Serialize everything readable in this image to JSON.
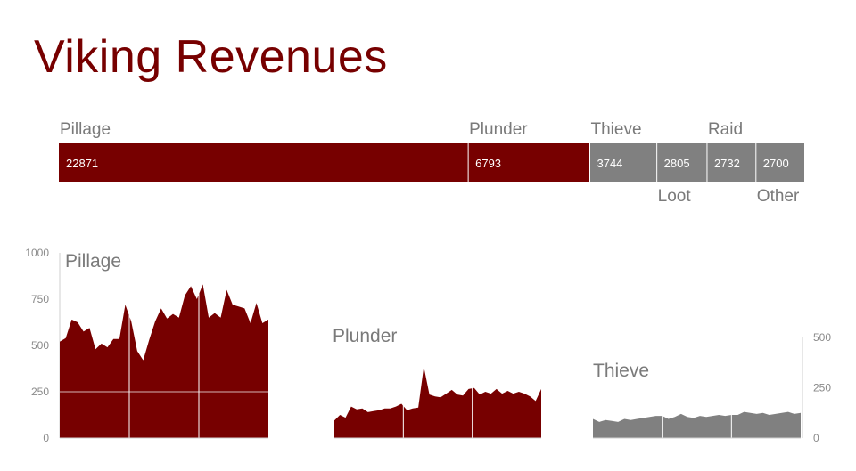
{
  "title": "Viking Revenues",
  "colors": {
    "primary": "#770000",
    "secondary": "#808080",
    "text": "#7a7a7a"
  },
  "chart_data": [
    {
      "type": "bar",
      "subtype": "stacked-horizontal",
      "categories": [
        "Pillage",
        "Plunder",
        "Thieve",
        "Loot",
        "Raid",
        "Other"
      ],
      "values": [
        22871,
        6793,
        3744,
        2805,
        2732,
        2700
      ],
      "colors": [
        "#770000",
        "#770000",
        "#808080",
        "#808080",
        "#808080",
        "#808080"
      ]
    },
    {
      "type": "area",
      "title": "Pillage",
      "ylim": [
        0,
        1000
      ],
      "yticks": [
        "0",
        "250",
        "500",
        "750",
        "1000"
      ],
      "axis_side": "left",
      "color": "#770000",
      "values": [
        520,
        540,
        640,
        625,
        575,
        595,
        480,
        510,
        490,
        535,
        535,
        720,
        630,
        470,
        420,
        530,
        630,
        700,
        645,
        670,
        650,
        770,
        820,
        750,
        830,
        650,
        675,
        650,
        800,
        720,
        710,
        700,
        620,
        730,
        620,
        640
      ]
    },
    {
      "type": "area",
      "title": "Plunder",
      "ylim": [
        0,
        1000
      ],
      "color": "#770000",
      "values": [
        95,
        125,
        110,
        170,
        155,
        160,
        140,
        145,
        150,
        160,
        160,
        170,
        185,
        150,
        160,
        165,
        385,
        235,
        225,
        220,
        240,
        260,
        235,
        230,
        265,
        270,
        235,
        250,
        240,
        265,
        240,
        255,
        240,
        250,
        240,
        225,
        200,
        265
      ]
    },
    {
      "type": "area",
      "title": "Thieve",
      "ylim": [
        0,
        500
      ],
      "yticks": [
        "0",
        "250",
        "500"
      ],
      "axis_side": "right",
      "color": "#808080",
      "values": [
        95,
        80,
        90,
        85,
        80,
        95,
        90,
        95,
        100,
        105,
        110,
        110,
        95,
        105,
        120,
        105,
        100,
        110,
        105,
        110,
        115,
        110,
        115,
        115,
        130,
        125,
        120,
        125,
        115,
        120,
        125,
        130,
        120,
        125
      ]
    }
  ]
}
